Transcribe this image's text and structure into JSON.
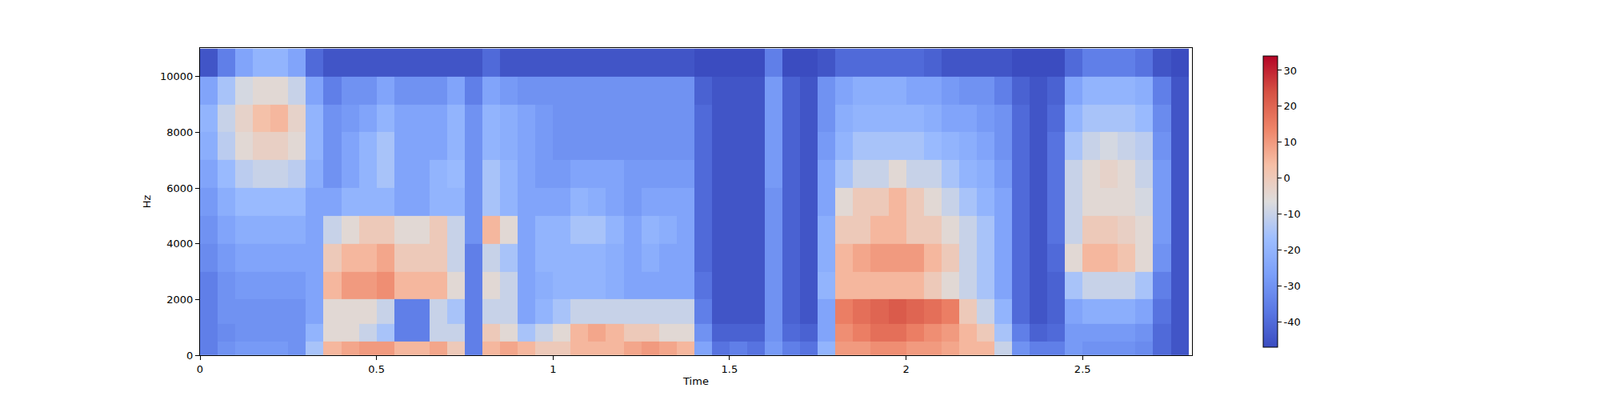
{
  "chart_data": {
    "type": "heatmap",
    "xlabel": "Time",
    "ylabel": "Hz",
    "xlim": [
      0,
      2.81
    ],
    "xticks": [
      0,
      0.5,
      1,
      1.5,
      2,
      2.5
    ],
    "ylim": [
      0,
      11025
    ],
    "yticks": [
      0,
      2000,
      4000,
      6000,
      8000,
      10000
    ],
    "x": [
      0.025,
      0.075,
      0.125,
      0.175,
      0.225,
      0.275,
      0.325,
      0.375,
      0.425,
      0.475,
      0.525,
      0.575,
      0.625,
      0.675,
      0.725,
      0.775,
      0.825,
      0.875,
      0.925,
      0.975,
      1.025,
      1.075,
      1.125,
      1.175,
      1.225,
      1.275,
      1.325,
      1.375,
      1.425,
      1.475,
      1.525,
      1.575,
      1.625,
      1.675,
      1.725,
      1.775,
      1.825,
      1.875,
      1.925,
      1.975,
      2.025,
      2.075,
      2.125,
      2.175,
      2.225,
      2.275,
      2.325,
      2.375,
      2.425,
      2.475,
      2.525,
      2.575,
      2.625,
      2.675,
      2.725,
      2.775
    ],
    "y": [
      250,
      750,
      1500,
      2500,
      3500,
      4500,
      5500,
      6500,
      7500,
      8500,
      9500,
      10500
    ],
    "z": [
      [
        -35,
        -35,
        -35,
        -35,
        -32,
        -30,
        -28,
        -25,
        -22,
        -20,
        -25,
        -45
      ],
      [
        -30,
        -32,
        -30,
        -30,
        -28,
        -25,
        -22,
        -18,
        -12,
        -10,
        -15,
        -35
      ],
      [
        -28,
        -30,
        -30,
        -28,
        -25,
        -22,
        -18,
        -12,
        -5,
        -3,
        -8,
        -25
      ],
      [
        -28,
        -30,
        -30,
        -28,
        -25,
        -22,
        -18,
        -10,
        -2,
        3,
        -5,
        -20
      ],
      [
        -28,
        -30,
        -30,
        -28,
        -25,
        -22,
        -18,
        -10,
        -2,
        5,
        -5,
        -20
      ],
      [
        -30,
        -30,
        -30,
        -28,
        -25,
        -22,
        -18,
        -12,
        -5,
        -3,
        -10,
        -25
      ],
      [
        -15,
        -20,
        -25,
        -25,
        -25,
        -25,
        -25,
        -22,
        -20,
        -20,
        -25,
        -40
      ],
      [
        5,
        -5,
        -5,
        5,
        0,
        -10,
        -25,
        -30,
        -30,
        -30,
        -35,
        -45
      ],
      [
        8,
        -5,
        -5,
        10,
        5,
        -5,
        -20,
        -25,
        -25,
        -28,
        -30,
        -45
      ],
      [
        10,
        -10,
        -5,
        10,
        5,
        0,
        -20,
        -20,
        -20,
        -25,
        -30,
        -45
      ],
      [
        10,
        -15,
        -10,
        12,
        8,
        0,
        -20,
        -15,
        -15,
        -20,
        -25,
        -45
      ],
      [
        5,
        -35,
        -35,
        5,
        0,
        -5,
        -25,
        -25,
        -25,
        -25,
        -30,
        -45
      ],
      [
        5,
        -35,
        -35,
        5,
        0,
        -5,
        -25,
        -25,
        -25,
        -25,
        -30,
        -45
      ],
      [
        8,
        -10,
        -10,
        5,
        0,
        0,
        -20,
        -20,
        -25,
        -25,
        -30,
        -45
      ],
      [
        0,
        -10,
        -15,
        -5,
        -10,
        -10,
        -20,
        -18,
        -20,
        -20,
        -25,
        -45
      ],
      [
        -35,
        -35,
        -35,
        -35,
        -35,
        -30,
        -30,
        -30,
        -30,
        -30,
        -35,
        -45
      ],
      [
        5,
        0,
        -10,
        -5,
        -10,
        5,
        -15,
        -15,
        -20,
        -20,
        -25,
        -40
      ],
      [
        8,
        -5,
        -10,
        -10,
        -15,
        -5,
        -20,
        -20,
        -22,
        -22,
        -28,
        -45
      ],
      [
        5,
        -15,
        -25,
        -25,
        -25,
        -25,
        -25,
        -25,
        -25,
        -25,
        -30,
        -45
      ],
      [
        0,
        -10,
        -20,
        -22,
        -20,
        -20,
        -25,
        -28,
        -28,
        -28,
        -30,
        -45
      ],
      [
        0,
        -5,
        -15,
        -20,
        -20,
        -20,
        -25,
        -28,
        -30,
        -30,
        -30,
        -45
      ],
      [
        5,
        5,
        -10,
        -20,
        -20,
        -15,
        -20,
        -25,
        -30,
        -30,
        -30,
        -45
      ],
      [
        5,
        8,
        -10,
        -20,
        -20,
        -15,
        -22,
        -25,
        -30,
        -30,
        -30,
        -45
      ],
      [
        5,
        5,
        -10,
        -22,
        -22,
        -20,
        -25,
        -25,
        -30,
        -30,
        -30,
        -45
      ],
      [
        8,
        0,
        -10,
        -25,
        -25,
        -25,
        -28,
        -28,
        -30,
        -30,
        -30,
        -45
      ],
      [
        10,
        0,
        -10,
        -25,
        -22,
        -20,
        -25,
        -28,
        -30,
        -30,
        -30,
        -45
      ],
      [
        8,
        -5,
        -10,
        -25,
        -25,
        -22,
        -25,
        -28,
        -30,
        -30,
        -30,
        -45
      ],
      [
        5,
        -5,
        -10,
        -25,
        -25,
        -25,
        -25,
        -28,
        -30,
        -30,
        -30,
        -45
      ],
      [
        -25,
        -30,
        -35,
        -38,
        -40,
        -40,
        -40,
        -40,
        -40,
        -40,
        -42,
        -47
      ],
      [
        -38,
        -42,
        -45,
        -45,
        -45,
        -45,
        -45,
        -45,
        -45,
        -45,
        -45,
        -47
      ],
      [
        -35,
        -42,
        -45,
        -45,
        -45,
        -45,
        -45,
        -45,
        -45,
        -45,
        -45,
        -47
      ],
      [
        -38,
        -42,
        -45,
        -45,
        -45,
        -45,
        -45,
        -45,
        -45,
        -45,
        -45,
        -47
      ],
      [
        -28,
        -30,
        -30,
        -30,
        -30,
        -30,
        -30,
        -28,
        -28,
        -28,
        -28,
        -35
      ],
      [
        -35,
        -40,
        -42,
        -42,
        -42,
        -42,
        -42,
        -42,
        -42,
        -42,
        -42,
        -47
      ],
      [
        -38,
        -42,
        -45,
        -45,
        -45,
        -45,
        -45,
        -45,
        -45,
        -45,
        -45,
        -47
      ],
      [
        -20,
        -25,
        -25,
        -20,
        -22,
        -22,
        -25,
        -25,
        -28,
        -30,
        -30,
        -45
      ],
      [
        10,
        12,
        15,
        5,
        5,
        0,
        -5,
        -15,
        -20,
        -22,
        -25,
        -40
      ],
      [
        10,
        15,
        18,
        5,
        8,
        0,
        0,
        -10,
        -15,
        -20,
        -22,
        -40
      ],
      [
        12,
        18,
        20,
        5,
        10,
        5,
        0,
        -10,
        -15,
        -20,
        -22,
        -40
      ],
      [
        12,
        18,
        22,
        5,
        10,
        5,
        5,
        -5,
        -15,
        -20,
        -22,
        -40
      ],
      [
        10,
        15,
        20,
        5,
        10,
        0,
        0,
        -10,
        -15,
        -20,
        -25,
        -40
      ],
      [
        10,
        12,
        18,
        0,
        5,
        0,
        -5,
        -10,
        -18,
        -22,
        -25,
        -42
      ],
      [
        8,
        10,
        15,
        -5,
        0,
        -5,
        -10,
        -15,
        -20,
        -25,
        -28,
        -45
      ],
      [
        5,
        5,
        0,
        -10,
        -10,
        -10,
        -15,
        -20,
        -22,
        -25,
        -30,
        -45
      ],
      [
        5,
        0,
        -10,
        -15,
        -15,
        -15,
        -20,
        -22,
        -25,
        -28,
        -30,
        -45
      ],
      [
        -10,
        -15,
        -20,
        -25,
        -25,
        -25,
        -25,
        -28,
        -30,
        -30,
        -35,
        -45
      ],
      [
        -30,
        -35,
        -40,
        -40,
        -40,
        -40,
        -40,
        -40,
        -40,
        -40,
        -42,
        -47
      ],
      [
        -35,
        -42,
        -45,
        -45,
        -45,
        -45,
        -45,
        -45,
        -45,
        -45,
        -45,
        -47
      ],
      [
        -35,
        -40,
        -42,
        -42,
        -40,
        -38,
        -38,
        -38,
        -38,
        -40,
        -42,
        -47
      ],
      [
        -28,
        -28,
        -25,
        -15,
        -5,
        -10,
        -10,
        -10,
        -15,
        -20,
        -25,
        -40
      ],
      [
        -30,
        -28,
        -22,
        -10,
        5,
        0,
        -5,
        -5,
        -10,
        -15,
        -20,
        -35
      ],
      [
        -30,
        -28,
        -22,
        -10,
        5,
        0,
        -5,
        -3,
        -8,
        -15,
        -20,
        -35
      ],
      [
        -30,
        -28,
        -22,
        -10,
        2,
        -2,
        -5,
        -5,
        -10,
        -15,
        -20,
        -35
      ],
      [
        -32,
        -30,
        -25,
        -15,
        -5,
        -5,
        -8,
        -10,
        -12,
        -18,
        -22,
        -38
      ],
      [
        -40,
        -40,
        -38,
        -35,
        -30,
        -28,
        -28,
        -28,
        -30,
        -32,
        -35,
        -45
      ],
      [
        -45,
        -45,
        -45,
        -45,
        -45,
        -45,
        -45,
        -45,
        -45,
        -45,
        -45,
        -47
      ]
    ],
    "colorbar": {
      "range": [
        -47,
        34
      ],
      "ticks": [
        -40,
        -30,
        -20,
        -10,
        0,
        10,
        20,
        30
      ]
    }
  }
}
